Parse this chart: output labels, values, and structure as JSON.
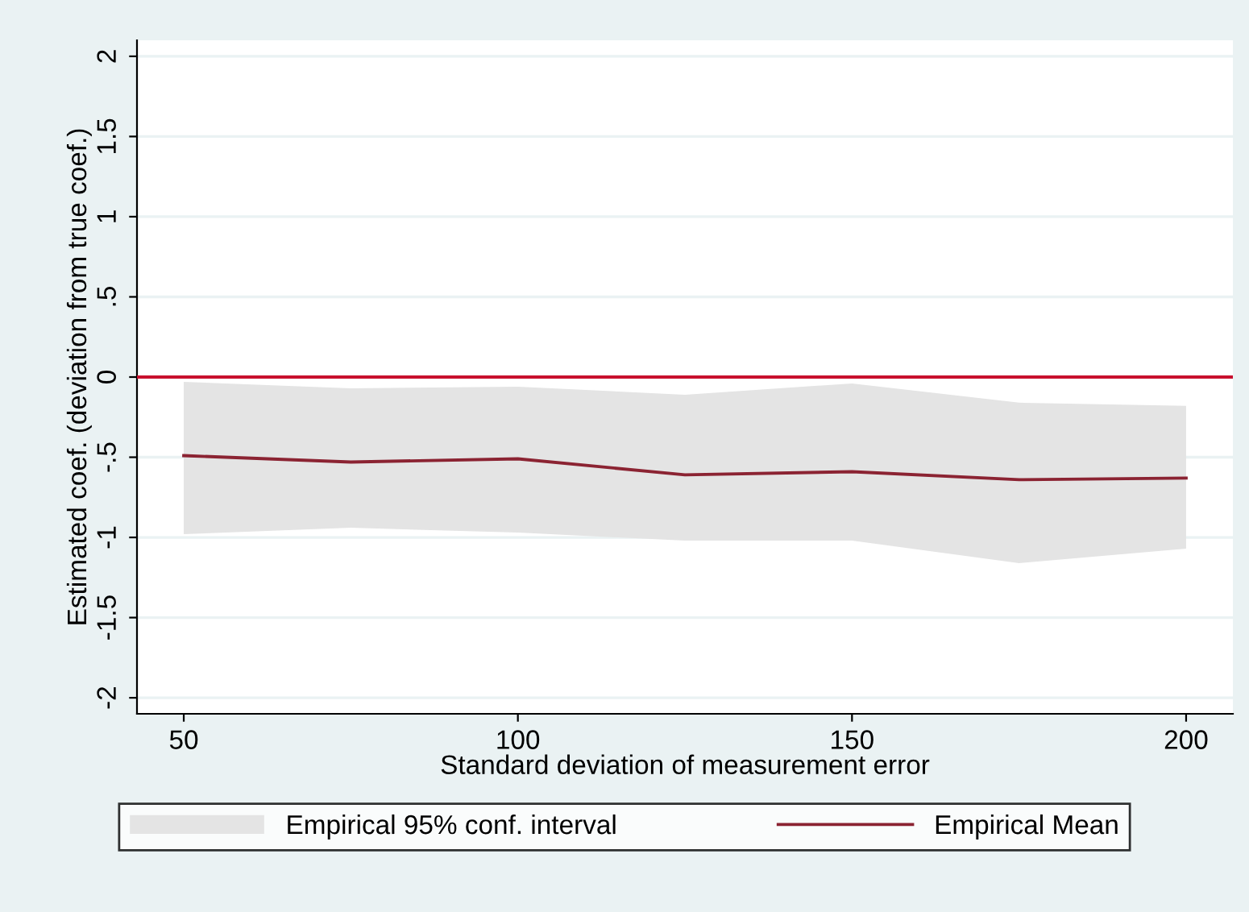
{
  "chart_data": {
    "type": "line",
    "xlabel": "Standard deviation of measurement error",
    "ylabel": "Estimated coef. (deviation from true coef.)",
    "x": [
      50,
      75,
      100,
      125,
      150,
      175,
      200
    ],
    "series": [
      {
        "name": "Empirical Mean",
        "color": "#8b2332",
        "values": [
          -0.49,
          -0.53,
          -0.51,
          -0.61,
          -0.59,
          -0.64,
          -0.63
        ],
        "lower": [
          -0.98,
          -0.94,
          -0.97,
          -1.02,
          -1.02,
          -1.16,
          -1.07
        ],
        "upper": [
          -0.03,
          -0.07,
          -0.06,
          -0.11,
          -0.04,
          -0.16,
          -0.18
        ]
      }
    ],
    "annotations": [
      "Empirical 95% conf. interval"
    ],
    "xlim": [
      43,
      207
    ],
    "xticks": [
      50,
      100,
      150,
      200
    ],
    "ylim": [
      -2.1,
      2.1
    ],
    "yticks": [
      {
        "value": -2,
        "label": "-2"
      },
      {
        "value": -1.5,
        "label": "-1.5"
      },
      {
        "value": -1,
        "label": "-1"
      },
      {
        "value": -0.5,
        "label": "-.5"
      },
      0,
      {
        "value": 0.5,
        "label": ".5"
      },
      1,
      {
        "value": 1.5,
        "label": "1.5"
      },
      2
    ],
    "ref_lines": [
      {
        "axis": "y",
        "value": 0,
        "color": "#c8102e"
      }
    ],
    "grid": "y",
    "legend": "bottom"
  }
}
